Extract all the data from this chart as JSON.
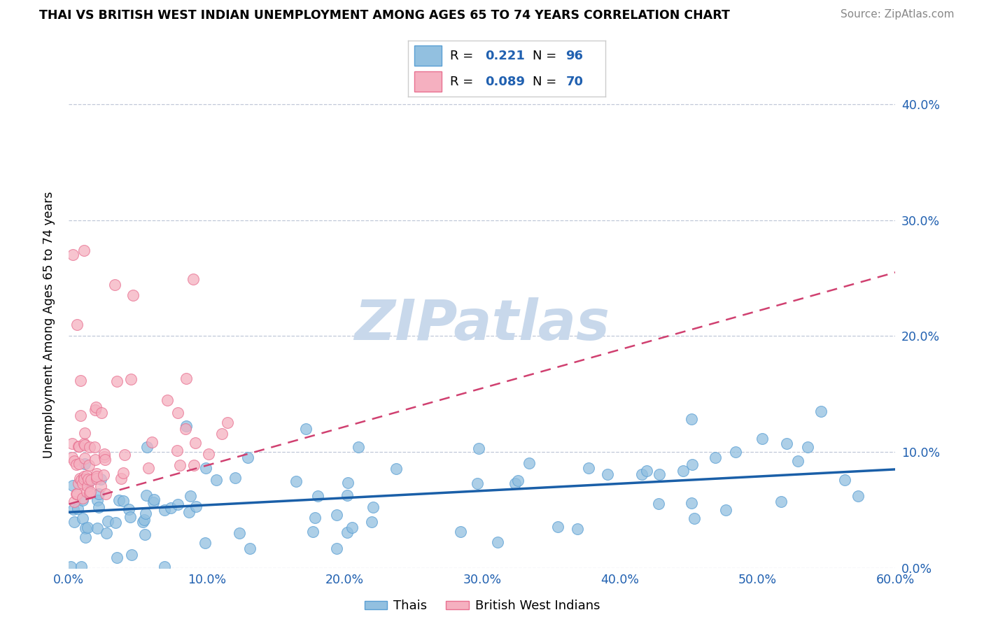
{
  "title": "THAI VS BRITISH WEST INDIAN UNEMPLOYMENT AMONG AGES 65 TO 74 YEARS CORRELATION CHART",
  "source": "Source: ZipAtlas.com",
  "ylabel": "Unemployment Among Ages 65 to 74 years",
  "xlim": [
    0.0,
    0.6
  ],
  "ylim": [
    0.0,
    0.42
  ],
  "xticks": [
    0.0,
    0.1,
    0.2,
    0.3,
    0.4,
    0.5,
    0.6
  ],
  "xtick_labels": [
    "0.0%",
    "10.0%",
    "20.0%",
    "30.0%",
    "40.0%",
    "50.0%",
    "60.0%"
  ],
  "yticks": [
    0.0,
    0.1,
    0.2,
    0.3,
    0.4
  ],
  "ytick_labels_right": [
    "0.0%",
    "10.0%",
    "20.0%",
    "30.0%",
    "40.0%"
  ],
  "blue_scatter_color": "#92c0e0",
  "blue_edge_color": "#5a9fd4",
  "pink_scatter_color": "#f5b0c0",
  "pink_edge_color": "#e87090",
  "trend_blue_color": "#1a5fa8",
  "trend_pink_color": "#d04070",
  "watermark_color": "#c8d8eb",
  "R_thai": 0.221,
  "N_thai": 96,
  "R_bwi": 0.089,
  "N_bwi": 70,
  "legend_R_N_color": "#2060b0",
  "thai_trend_x0": 0.0,
  "thai_trend_y0": 0.048,
  "thai_trend_x1": 0.6,
  "thai_trend_y1": 0.085,
  "bwi_trend_x0": 0.0,
  "bwi_trend_y0": 0.055,
  "bwi_trend_x1": 0.6,
  "bwi_trend_y1": 0.255
}
